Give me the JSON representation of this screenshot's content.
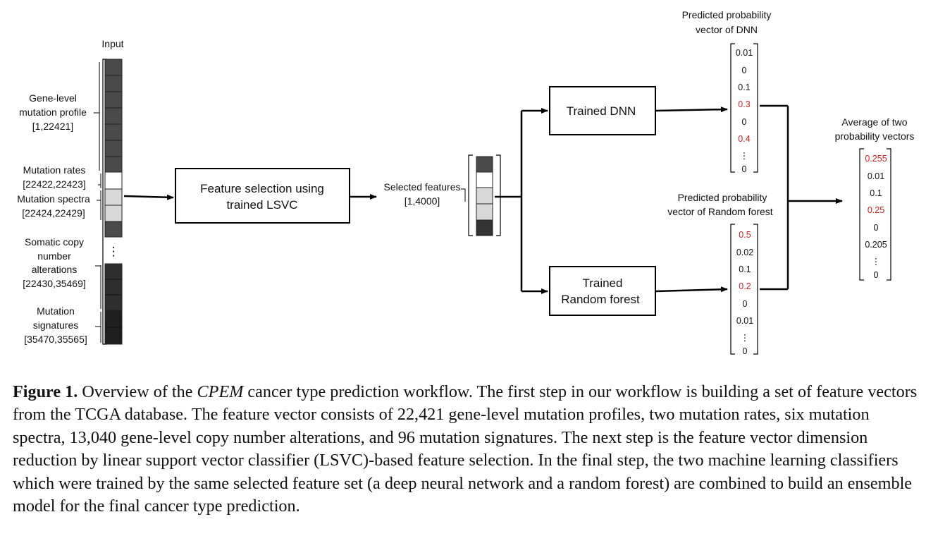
{
  "diagram": {
    "input_title": "Input",
    "gene_label": [
      "Gene-level",
      "mutation profile",
      "[1,22421]"
    ],
    "rates_label": [
      "Mutation rates",
      "[22422,22423]"
    ],
    "spectra_label": [
      "Mutation spectra",
      "[22424,22429]"
    ],
    "cna_label": [
      "Somatic copy",
      "number",
      "alterations",
      "[22430,35469]"
    ],
    "sig_label": [
      "Mutation",
      "signatures",
      "[35470,35565]"
    ],
    "fs_box": [
      "Feature selection using",
      "trained LSVC"
    ],
    "selected_label": [
      "Selected features",
      "[1,4000]"
    ],
    "dnn_box": "Trained DNN",
    "rf_box": [
      "Trained",
      "Random forest"
    ],
    "dnn_prob_title": [
      "Predicted probability",
      "vector of DNN"
    ],
    "rf_prob_title": [
      "Predicted probability",
      "vector of Random forest"
    ],
    "avg_title": [
      "Average of two",
      "probability vectors"
    ],
    "dnn_vector": [
      "0.01",
      "0",
      "0.1",
      "0.3",
      "0",
      "0.4",
      "⋮",
      "0"
    ],
    "rf_vector": [
      "0.5",
      "0.02",
      "0.1",
      "0.2",
      "0",
      "0.01",
      "⋮",
      "0"
    ],
    "avg_vector": [
      "0.255",
      "0.01",
      "0.1",
      "0.25",
      "0",
      "0.205",
      "⋮",
      "0"
    ],
    "vdots": "⋮",
    "colors": {
      "highlight": "#d32020",
      "dark_cell": "#4a4a4a",
      "light_cell": "#d9d9d9",
      "darker_cell": "#1e1e1e"
    }
  },
  "caption": {
    "label": "Figure 1.",
    "pre": " Overview of the ",
    "italic": "CPEM",
    "post": " cancer type prediction workflow. The first step in our workflow is building a set of feature vectors from the TCGA database. The feature vector consists of 22,421 gene-level mutation profiles, two mutation rates, six mutation spectra, 13,040 gene-level copy number alterations, and 96 mutation signatures. The next step is the feature vector dimension reduction by linear support vector classifier (LSVC)-based feature selection. In the final step, the two machine learning classifiers which were trained by the same selected feature set (a deep neural network and a random forest) are combined to build an ensemble model for the final cancer type prediction."
  }
}
